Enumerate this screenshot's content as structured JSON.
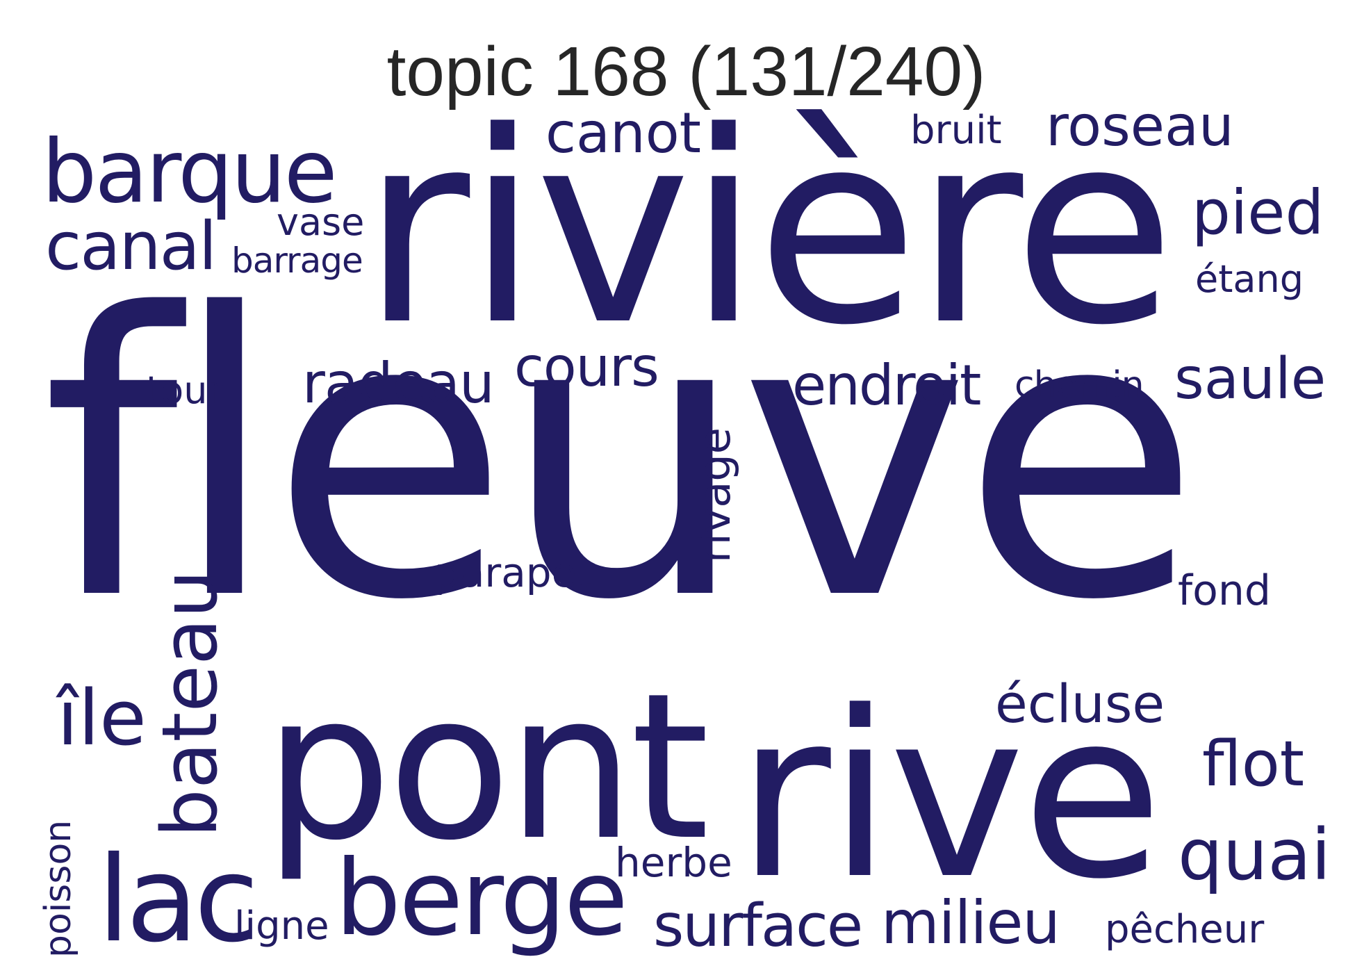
{
  "title": "topic 168 (131/240)",
  "word_color": "#221c63",
  "title_color": "#262626",
  "words": {
    "fleuve": "fleuve",
    "riviere": "rivière",
    "pont": "pont",
    "rive": "rive",
    "barque": "barque",
    "canot": "canot",
    "berge": "berge",
    "lac": "lac",
    "canal": "canal",
    "bateau": "bateau",
    "roseau": "roseau",
    "pied": "pied",
    "radeau": "radeau",
    "cours": "cours",
    "endroit": "endroit",
    "saule": "saule",
    "quai": "quai",
    "surface": "surface",
    "milieu": "milieu",
    "ile": "île",
    "flot": "flot",
    "ecluse": "écluse",
    "rivage": "rivage",
    "fond": "fond",
    "parapet": "parapet",
    "bruit": "bruit",
    "vase": "vase",
    "barrage": "barrage",
    "etang": "étang",
    "tour": "tour",
    "chemin": "chemin",
    "herbe": "herbe",
    "ligne": "ligne",
    "pecheur": "pêcheur",
    "poisson": "poisson"
  }
}
